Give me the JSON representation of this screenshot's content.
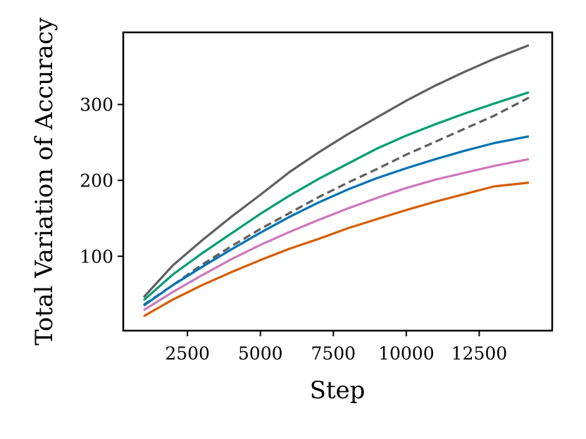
{
  "chart_data": {
    "type": "line",
    "title": "",
    "xlabel": "Step",
    "ylabel": "Total Variation of Accuracy",
    "xlim": [
      300,
      15000
    ],
    "ylim": [
      2,
      395
    ],
    "xticks": [
      2500,
      5000,
      7500,
      10000,
      12500
    ],
    "yticks": [
      100,
      200,
      300
    ],
    "grid": false,
    "x": [
      1000,
      2000,
      3000,
      4000,
      5000,
      6000,
      7000,
      8000,
      9000,
      10000,
      11000,
      12000,
      13000,
      14200
    ],
    "series": [
      {
        "color": "#5f5f5f",
        "dash": "solid",
        "values": [
          46,
          88,
          121,
          152,
          181,
          211,
          237,
          261,
          283,
          305,
          325,
          343,
          360,
          378
        ]
      },
      {
        "color": "#029e73",
        "dash": "solid",
        "values": [
          42,
          76,
          104,
          130,
          156,
          180,
          202,
          222,
          242,
          259,
          274,
          288,
          301,
          316
        ]
      },
      {
        "color": "#5f5f5f",
        "dash": "dashed",
        "values": [
          36,
          62,
          89,
          113,
          136,
          157,
          178,
          197,
          215,
          234,
          251,
          268,
          285,
          309
        ]
      },
      {
        "color": "#0173b2",
        "dash": "solid",
        "values": [
          35,
          62,
          86,
          109,
          131,
          152,
          171,
          188,
          203,
          216,
          228,
          239,
          249,
          258
        ]
      },
      {
        "color": "#cc78bc",
        "dash": "solid",
        "values": [
          29,
          53,
          75,
          96,
          115,
          132,
          148,
          163,
          177,
          190,
          201,
          210,
          219,
          228
        ]
      },
      {
        "color": "#d55e00",
        "dash": "solid",
        "values": [
          21,
          43,
          62,
          79,
          95,
          110,
          123,
          137,
          149,
          161,
          172,
          182,
          192,
          197
        ]
      }
    ]
  }
}
